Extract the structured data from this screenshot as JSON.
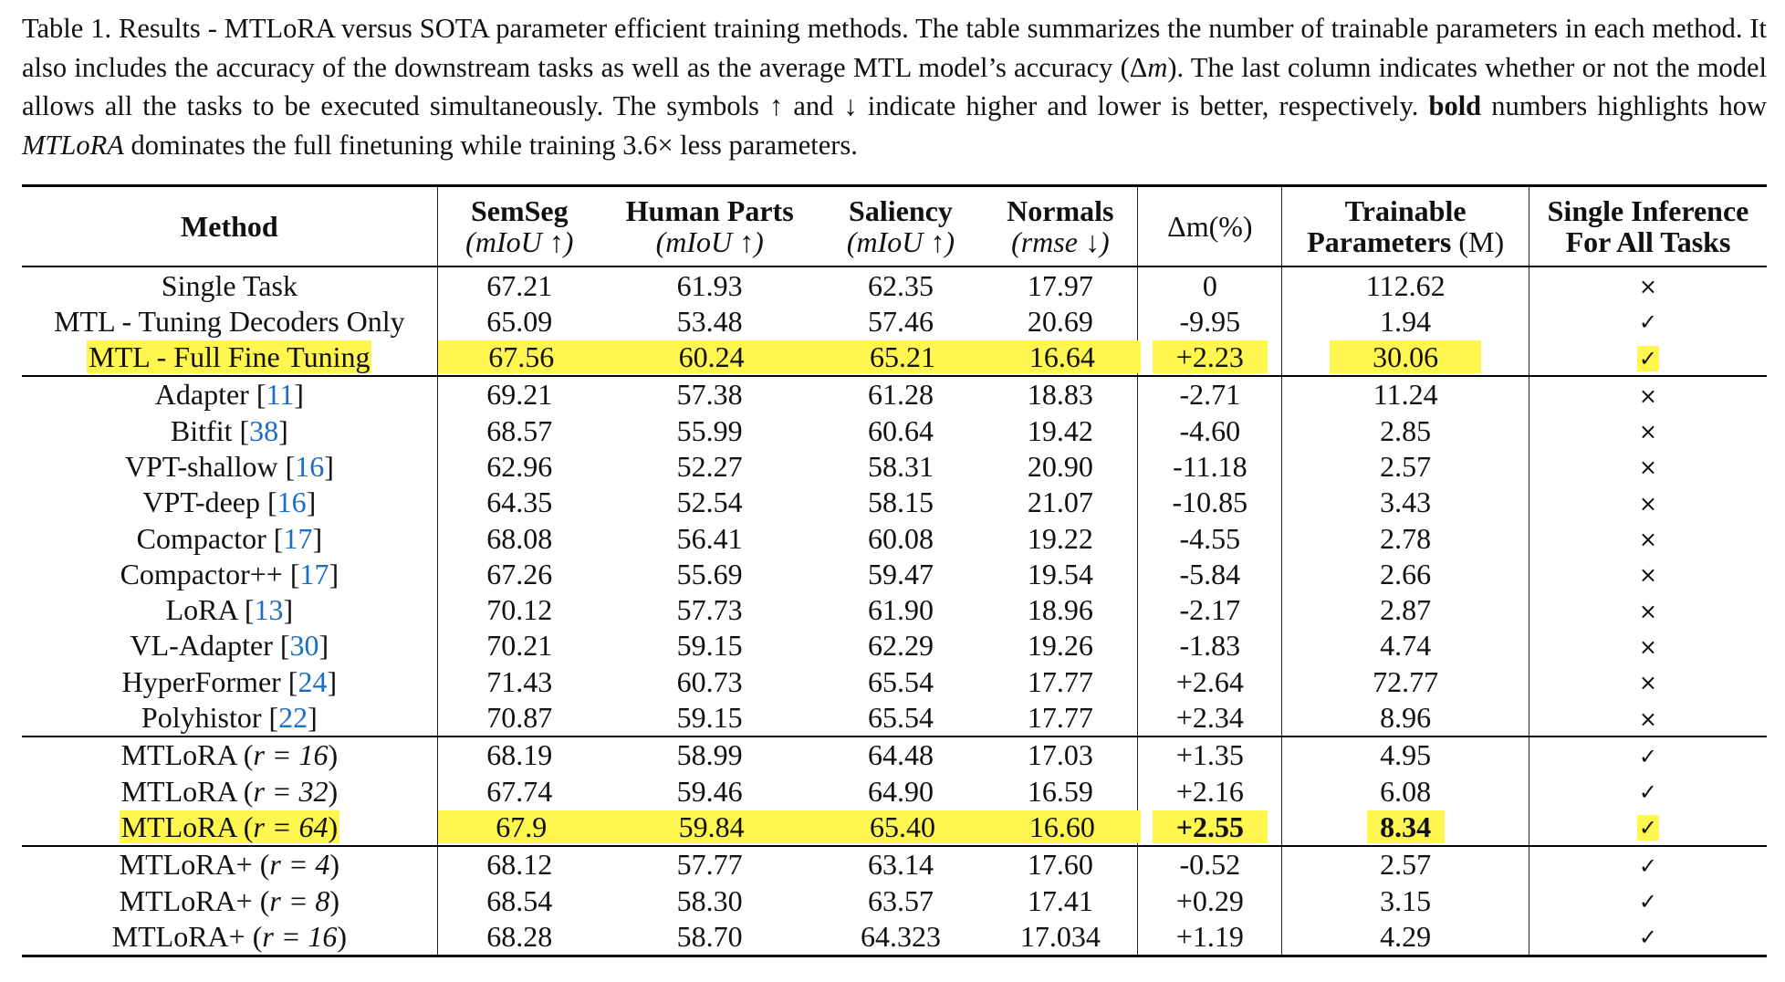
{
  "caption": {
    "part1": "Table 1. Results - MTLoRA versus SOTA parameter efficient training methods. The table summarizes the number of trainable parameters in each method. It also includes the accuracy of the downstream tasks as well as the average MTL model’s accuracy (Δ",
    "delta_m": "m",
    "part2": "). The last column indicates whether or not the model allows all the tasks to be executed simultaneously. The symbols ↑ and ↓ indicate higher and lower is better, respectively. ",
    "bold_word": "bold",
    "part3": " numbers highlights how ",
    "italic_name": "MTLoRA",
    "part4": " dominates the full finetuning while training 3.6× less parameters."
  },
  "table": {
    "headers": {
      "method": "Method",
      "semseg": "SemSeg",
      "semseg_unit": "(mIoU ↑)",
      "humanparts": "Human Parts",
      "humanparts_unit": "(mIoU ↑)",
      "saliency": "Saliency",
      "saliency_unit": "(mIoU ↑)",
      "normals": "Normals",
      "normals_unit": "(rmse ↓)",
      "delta": "Δm(%)",
      "trainable_line1": "Trainable",
      "trainable_line2": "Parameters",
      "trainable_unit": " (M)",
      "single_line1": "Single Inference",
      "single_line2": "For All Tasks"
    },
    "rows": [
      {
        "method": "Single Task",
        "semseg": "67.21",
        "humanparts": "61.93",
        "saliency": "62.35",
        "normals": "17.97",
        "delta": "0",
        "params": "112.62",
        "single": "×"
      },
      {
        "method": "MTL - Tuning Decoders Only",
        "semseg": "65.09",
        "humanparts": "53.48",
        "saliency": "57.46",
        "normals": "20.69",
        "delta": "-9.95",
        "params": "1.94",
        "single": "✓"
      },
      {
        "method": "MTL - Full Fine Tuning",
        "semseg": "67.56",
        "humanparts": "60.24",
        "saliency": "65.21",
        "normals": "16.64",
        "delta": "+2.23",
        "params": "30.06",
        "single": "✓"
      },
      {
        "method": "Adapter",
        "cite": "11",
        "semseg": "69.21",
        "humanparts": "57.38",
        "saliency": "61.28",
        "normals": "18.83",
        "delta": "-2.71",
        "params": "11.24",
        "single": "×"
      },
      {
        "method": "Bitfit",
        "cite": "38",
        "semseg": "68.57",
        "humanparts": "55.99",
        "saliency": "60.64",
        "normals": "19.42",
        "delta": "-4.60",
        "params": "2.85",
        "single": "×"
      },
      {
        "method": "VPT-shallow",
        "cite": "16",
        "semseg": "62.96",
        "humanparts": "52.27",
        "saliency": "58.31",
        "normals": "20.90",
        "delta": "-11.18",
        "params": "2.57",
        "single": "×"
      },
      {
        "method": "VPT-deep",
        "cite": "16",
        "semseg": "64.35",
        "humanparts": "52.54",
        "saliency": "58.15",
        "normals": "21.07",
        "delta": "-10.85",
        "params": "3.43",
        "single": "×"
      },
      {
        "method": "Compactor",
        "cite": "17",
        "semseg": "68.08",
        "humanparts": "56.41",
        "saliency": "60.08",
        "normals": "19.22",
        "delta": "-4.55",
        "params": "2.78",
        "single": "×"
      },
      {
        "method": "Compactor++",
        "cite": "17",
        "semseg": "67.26",
        "humanparts": "55.69",
        "saliency": "59.47",
        "normals": "19.54",
        "delta": "-5.84",
        "params": "2.66",
        "single": "×"
      },
      {
        "method": "LoRA",
        "cite": "13",
        "semseg": "70.12",
        "humanparts": "57.73",
        "saliency": "61.90",
        "normals": "18.96",
        "delta": "-2.17",
        "params": "2.87",
        "single": "×"
      },
      {
        "method": "VL-Adapter",
        "cite": "30",
        "semseg": "70.21",
        "humanparts": "59.15",
        "saliency": "62.29",
        "normals": "19.26",
        "delta": "-1.83",
        "params": "4.74",
        "single": "×"
      },
      {
        "method": "HyperFormer",
        "cite": "24",
        "semseg": "71.43",
        "humanparts": "60.73",
        "saliency": "65.54",
        "normals": "17.77",
        "delta": "+2.64",
        "params": "72.77",
        "single": "×"
      },
      {
        "method": "Polyhistor",
        "cite": "22",
        "semseg": "70.87",
        "humanparts": "59.15",
        "saliency": "65.54",
        "normals": "17.77",
        "delta": "+2.34",
        "params": "8.96",
        "single": "×"
      },
      {
        "method": "MTLoRA (",
        "r": "r = 16",
        "close": ")",
        "semseg": "68.19",
        "humanparts": "58.99",
        "saliency": "64.48",
        "normals": "17.03",
        "delta": "+1.35",
        "params": "4.95",
        "single": "✓"
      },
      {
        "method": "MTLoRA (",
        "r": "r = 32",
        "close": ")",
        "semseg": "67.74",
        "humanparts": "59.46",
        "saliency": "64.90",
        "normals": "16.59",
        "delta": "+2.16",
        "params": "6.08",
        "single": "✓"
      },
      {
        "method": "MTLoRA (",
        "r": "r = 64",
        "close": ")",
        "semseg": "67.9",
        "humanparts": "59.84",
        "saliency": "65.40",
        "normals": "16.60",
        "delta": "+2.55",
        "params": "8.34",
        "single": "✓"
      },
      {
        "method": "MTLoRA+ (",
        "r": "r = 4",
        "close": ")",
        "semseg": "68.12",
        "humanparts": "57.77",
        "saliency": "63.14",
        "normals": "17.60",
        "delta": "-0.52",
        "params": "2.57",
        "single": "✓"
      },
      {
        "method": "MTLoRA+ (",
        "r": "r = 8",
        "close": ")",
        "semseg": "68.54",
        "humanparts": "58.30",
        "saliency": "63.57",
        "normals": "17.41",
        "delta": "+0.29",
        "params": "3.15",
        "single": "✓"
      },
      {
        "method": "MTLoRA+ (",
        "r": "r = 16",
        "close": ")",
        "semseg": "68.28",
        "humanparts": "58.70",
        "saliency": "64.323",
        "normals": "17.034",
        "delta": "+1.19",
        "params": "4.29",
        "single": "✓"
      }
    ],
    "highlight_color": "#fff64f",
    "citation_color": "#1a6fc4"
  }
}
